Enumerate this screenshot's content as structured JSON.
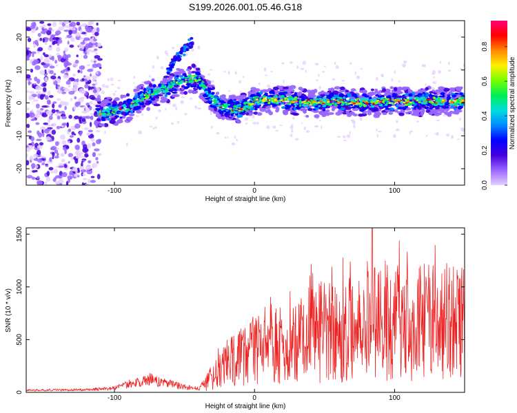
{
  "title": "S199.2026.001.05.46.G18",
  "colors": {
    "snr_line": "#ee2222",
    "colormap": [
      "#e6d0ff",
      "#9966ff",
      "#4400dd",
      "#0000ff",
      "#0088ff",
      "#00dddd",
      "#00ee55",
      "#77ff00",
      "#ffee00",
      "#ff8800",
      "#ff0000",
      "#ff0077"
    ]
  },
  "chart_data": [
    {
      "type": "heatmap",
      "xlabel": "Height of straight line (km)",
      "ylabel": "Frequency (Hz)",
      "xlim": [
        -163,
        150
      ],
      "ylim": [
        -25,
        25
      ],
      "x_ticks": [
        -100,
        0,
        100
      ],
      "y_ticks": [
        -20,
        -10,
        0,
        10,
        20
      ],
      "colorbar": {
        "label": "Normalized spectral amplitude",
        "range": [
          0,
          0.95
        ],
        "ticks": [
          0,
          0.2,
          0.4,
          0.6,
          0.8
        ]
      },
      "ridge": {
        "x": [
          -163,
          -145,
          -125,
          -112,
          -100,
          -90,
          -82,
          -75,
          -68,
          -60,
          -52,
          -45,
          -40,
          -36,
          -33,
          -30,
          -26,
          -20,
          -12,
          -5,
          0,
          10,
          20,
          40,
          60,
          80,
          100,
          120,
          150
        ],
        "freq": [
          -3,
          -4,
          -4,
          -3,
          -2.5,
          -1.5,
          1,
          2.5,
          3.5,
          5,
          6.5,
          7.5,
          7,
          5,
          3,
          1,
          -0.5,
          -1.5,
          -2,
          -1,
          0.5,
          1,
          1,
          0,
          0.5,
          0,
          0.5,
          0.5,
          0.5
        ],
        "peak_amplitude": 0.92
      },
      "noise_region_x": [
        -163,
        -110
      ]
    },
    {
      "type": "line",
      "xlabel": "Height of straight line (km)",
      "ylabel": "SNR (10 * v/v)",
      "xlim": [
        -163,
        150
      ],
      "ylim": [
        0,
        1560
      ],
      "x_ticks": [
        -100,
        0,
        100
      ],
      "y_ticks": [
        0,
        500,
        1000,
        1500
      ],
      "envelope": {
        "x": [
          -163,
          -120,
          -100,
          -90,
          -80,
          -75,
          -70,
          -60,
          -50,
          -40,
          -30,
          -20,
          -10,
          0,
          10,
          20,
          30,
          40,
          50,
          60,
          70,
          80,
          90,
          100,
          110,
          120,
          130,
          140,
          150
        ],
        "snr": [
          20,
          25,
          40,
          80,
          110,
          130,
          110,
          80,
          50,
          35,
          150,
          270,
          320,
          380,
          420,
          470,
          530,
          560,
          580,
          600,
          620,
          640,
          650,
          660,
          670,
          660,
          650,
          670,
          680
        ]
      }
    }
  ]
}
